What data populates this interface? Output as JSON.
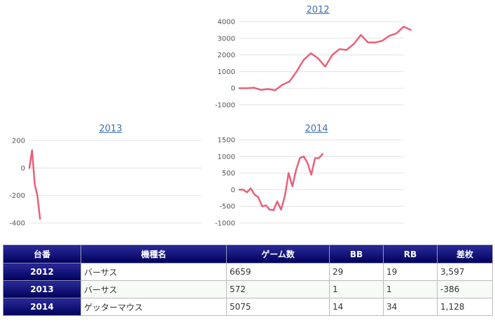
{
  "chart_data": [
    {
      "type": "line",
      "title": "2012",
      "ylim": [
        -1000,
        4000
      ],
      "yticks": [
        -1000,
        0,
        1000,
        2000,
        3000,
        4000
      ],
      "grid": true,
      "line_color": "#e9607a",
      "series": [
        {
          "values": [
            0,
            0,
            30,
            -100,
            -50,
            -120,
            200,
            400,
            1000,
            1700,
            2100,
            1800,
            1300,
            2000,
            2350,
            2300,
            2650,
            3200,
            2750,
            2750,
            2850,
            3150,
            3300,
            3700,
            3500
          ]
        }
      ]
    },
    {
      "type": "line",
      "title": "2013",
      "ylim": [
        -400,
        200
      ],
      "yticks": [
        -400,
        -200,
        0,
        200
      ],
      "grid": true,
      "line_color": "#e9607a",
      "series": [
        {
          "values": [
            0,
            130,
            -120,
            -200,
            -370
          ]
        }
      ]
    },
    {
      "type": "line",
      "title": "2014",
      "ylim": [
        -1000,
        1500
      ],
      "yticks": [
        -1000,
        -500,
        0,
        500,
        1000,
        1500
      ],
      "grid": true,
      "line_color": "#e9607a",
      "series": [
        {
          "values": [
            0,
            0,
            -80,
            40,
            -150,
            -230,
            -500,
            -470,
            -600,
            -620,
            -350,
            -600,
            -200,
            500,
            100,
            600,
            950,
            1000,
            800,
            450,
            950,
            950,
            1070
          ]
        }
      ]
    }
  ],
  "table": {
    "headers": [
      "台番",
      "機種名",
      "ゲーム数",
      "BB",
      "RB",
      "差枚"
    ],
    "rows": [
      {
        "id": "2012",
        "name": "バーサス",
        "games": "6659",
        "bb": "29",
        "rb": "19",
        "diff": "3,597",
        "negative": false
      },
      {
        "id": "2013",
        "name": "バーサス",
        "games": "572",
        "bb": "1",
        "rb": "1",
        "diff": "-386",
        "negative": true
      },
      {
        "id": "2014",
        "name": "ゲッターマウス",
        "games": "5075",
        "bb": "14",
        "rb": "34",
        "diff": "1,128",
        "negative": false
      }
    ]
  },
  "colors": {
    "header_bg": "#00005a",
    "link": "#3b6fb6",
    "line": "#e9607a",
    "negative": "#d62020"
  }
}
